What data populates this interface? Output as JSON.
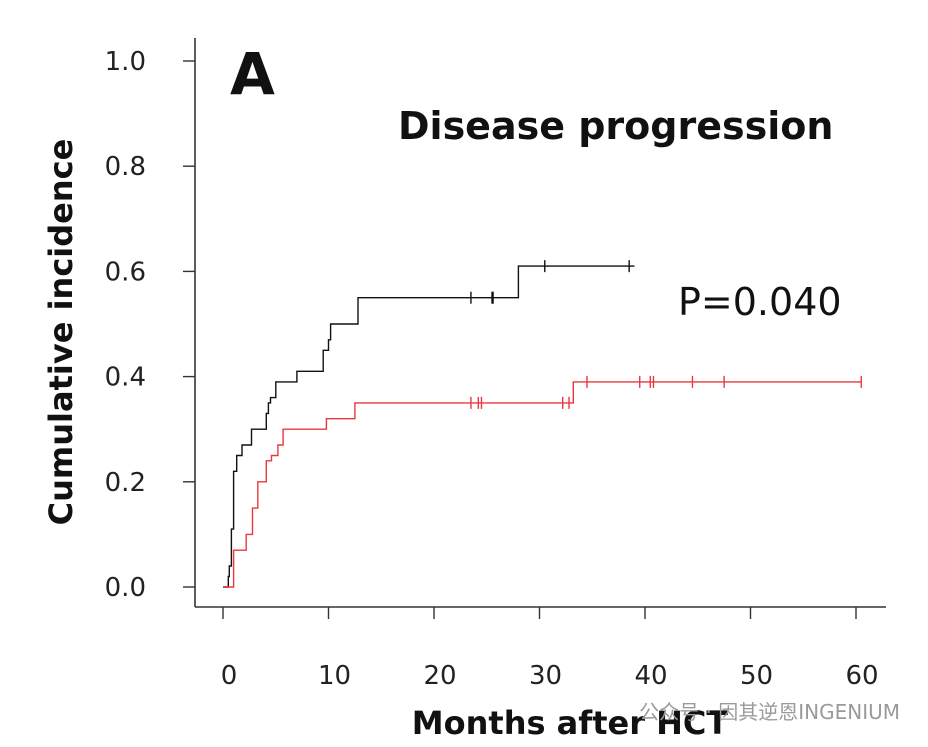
{
  "chart_data": {
    "type": "line",
    "step": true,
    "panel_label": "A",
    "title": "Disease progression",
    "xlabel": "Months after HCT",
    "ylabel": "Cumulative incidence",
    "annotation": "P=0.040",
    "xlim": [
      -2,
      63
    ],
    "ylim": [
      -0.04,
      1.05
    ],
    "xticks": [
      0,
      10,
      20,
      30,
      40,
      50,
      60
    ],
    "yticks": [
      0.0,
      0.2,
      0.4,
      0.6,
      0.8,
      1.0
    ],
    "ytick_labels": [
      "0.0",
      "0.2",
      "0.4",
      "0.6",
      "0.8",
      "1.0"
    ],
    "grid": false,
    "series": [
      {
        "color": "#111111",
        "steps": [
          [
            0,
            0
          ],
          [
            0.5,
            0.02
          ],
          [
            0.6,
            0.04
          ],
          [
            0.8,
            0.11
          ],
          [
            1.0,
            0.22
          ],
          [
            1.3,
            0.25
          ],
          [
            1.8,
            0.27
          ],
          [
            2.7,
            0.3
          ],
          [
            4.1,
            0.33
          ],
          [
            4.3,
            0.35
          ],
          [
            4.5,
            0.36
          ],
          [
            5.0,
            0.39
          ],
          [
            7.0,
            0.41
          ],
          [
            9.5,
            0.45
          ],
          [
            10.0,
            0.47
          ],
          [
            10.2,
            0.5
          ],
          [
            12.8,
            0.55
          ],
          [
            28.0,
            0.61
          ],
          [
            39.0,
            0.61
          ]
        ],
        "censored": [
          23.5,
          25.5,
          25.6,
          30.5,
          38.5
        ]
      },
      {
        "color": "#e8383d",
        "steps": [
          [
            0,
            0
          ],
          [
            1.0,
            0.07
          ],
          [
            2.2,
            0.1
          ],
          [
            2.8,
            0.15
          ],
          [
            3.3,
            0.2
          ],
          [
            4.1,
            0.24
          ],
          [
            4.6,
            0.25
          ],
          [
            5.2,
            0.27
          ],
          [
            5.7,
            0.3
          ],
          [
            9.8,
            0.32
          ],
          [
            12.5,
            0.35
          ],
          [
            33.2,
            0.39
          ],
          [
            60.5,
            0.39
          ]
        ],
        "censored": [
          23.5,
          24.2,
          24.5,
          32.2,
          32.8,
          34.5,
          39.5,
          40.5,
          40.8,
          44.5,
          47.5,
          60.5
        ]
      }
    ],
    "watermark": "公众号 · 因其逆恩INGENIUM"
  }
}
